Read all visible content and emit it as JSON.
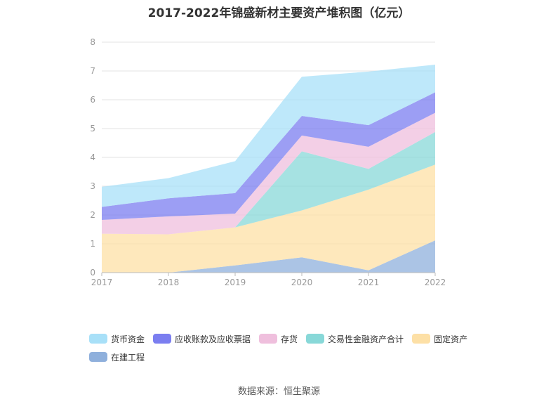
{
  "title": "2017-2022年锦盛新材主要资产堆积图（亿元）",
  "source_text": "数据来源：恒生聚源",
  "chart_data": {
    "type": "area",
    "stacked": true,
    "title": "2017-2022年锦盛新材主要资产堆积图（亿元）",
    "categories": [
      "2017",
      "2018",
      "2019",
      "2020",
      "2021",
      "2022"
    ],
    "ylim": [
      0,
      8
    ],
    "yticks": [
      "0",
      "1",
      "2",
      "3",
      "4",
      "5",
      "6",
      "7",
      "8"
    ],
    "grid": true,
    "legend_position": "bottom",
    "series": [
      {
        "name": "在建工程",
        "color": "#8fb0dc",
        "values": [
          0.0,
          0.0,
          0.25,
          0.53,
          0.08,
          1.12
        ]
      },
      {
        "name": "固定资产",
        "color": "#fde0a6",
        "values": [
          1.35,
          1.33,
          1.32,
          1.63,
          2.8,
          2.63
        ]
      },
      {
        "name": "交易性金融资产合计",
        "color": "#88d8d8",
        "values": [
          0.0,
          0.0,
          0.0,
          2.05,
          0.72,
          1.13
        ]
      },
      {
        "name": "存货",
        "color": "#efbfdd",
        "values": [
          0.48,
          0.62,
          0.48,
          0.55,
          0.77,
          0.67
        ]
      },
      {
        "name": "应收账款及应收票据",
        "color": "#7b7ef0",
        "values": [
          0.45,
          0.63,
          0.71,
          0.68,
          0.75,
          0.71
        ]
      },
      {
        "name": "货币资金",
        "color": "#a8e0f8",
        "values": [
          0.7,
          0.7,
          1.11,
          1.36,
          1.86,
          0.96
        ]
      }
    ]
  },
  "legend_order": [
    5,
    4,
    3,
    2,
    1,
    0
  ]
}
